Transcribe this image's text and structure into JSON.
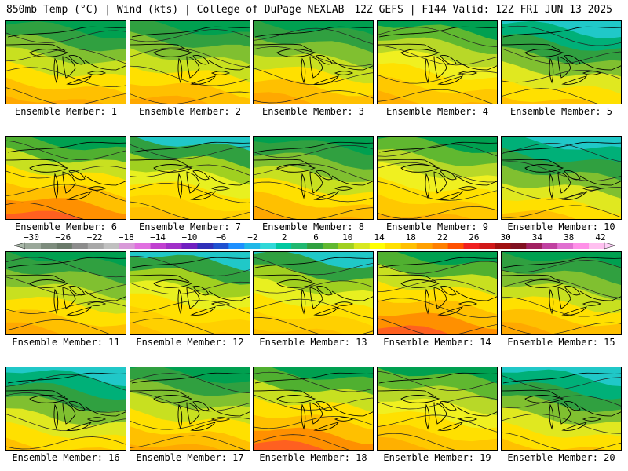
{
  "header": {
    "left": "850mb Temp (°C) | Wind (kts) | College of DuPage NEXLAB",
    "right": "12Z GEFS | F144 Valid: 12Z FRI JUN 13 2025"
  },
  "panels": [
    {
      "label": "Ensemble Member: 1",
      "scheme": "warm-north-green"
    },
    {
      "label": "Ensemble Member: 2",
      "scheme": "warm-north-green"
    },
    {
      "label": "Ensemble Member: 3",
      "scheme": "warm-north-green"
    },
    {
      "label": "Ensemble Member: 4",
      "scheme": "warm-yellow-low"
    },
    {
      "label": "Ensemble Member: 5",
      "scheme": "cool-north-teal"
    },
    {
      "label": "Ensemble Member: 6",
      "scheme": "hot-southwest"
    },
    {
      "label": "Ensemble Member: 7",
      "scheme": "yellow-northeast-teal"
    },
    {
      "label": "Ensemble Member: 8",
      "scheme": "warm-north-green"
    },
    {
      "label": "Ensemble Member: 9",
      "scheme": "warm-yellow-low"
    },
    {
      "label": "Ensemble Member: 10",
      "scheme": "cool-north-teal"
    },
    {
      "label": "Ensemble Member: 11",
      "scheme": "warm-north-green"
    },
    {
      "label": "Ensemble Member: 12",
      "scheme": "yellow-northeast-teal"
    },
    {
      "label": "Ensemble Member: 13",
      "scheme": "yellow-northeast-teal"
    },
    {
      "label": "Ensemble Member: 14",
      "scheme": "hot-southwest"
    },
    {
      "label": "Ensemble Member: 15",
      "scheme": "warm-north-green"
    },
    {
      "label": "Ensemble Member: 16",
      "scheme": "cool-north-teal"
    },
    {
      "label": "Ensemble Member: 17",
      "scheme": "warm-north-green"
    },
    {
      "label": "Ensemble Member: 18",
      "scheme": "hot-southwest"
    },
    {
      "label": "Ensemble Member: 19",
      "scheme": "warm-yellow-low"
    },
    {
      "label": "Ensemble Member: 20",
      "scheme": "cool-north-teal"
    }
  ],
  "colorbar": {
    "ticks": [
      "−30",
      "−26",
      "−22",
      "−18",
      "−14",
      "−10",
      "−6",
      "−2",
      "2",
      "6",
      "10",
      "14",
      "18",
      "22",
      "26",
      "30",
      "34",
      "38",
      "42"
    ],
    "colors": [
      "#9aa89a",
      "#7d8c7d",
      "#6a7a6a",
      "#8c8c8c",
      "#a8a8a8",
      "#c0c0c0",
      "#d89ad8",
      "#e070e0",
      "#c040d0",
      "#a030c8",
      "#7020c0",
      "#3030b8",
      "#2050d0",
      "#1e90ff",
      "#20b8e8",
      "#30d8d8",
      "#00c8a0",
      "#20b870",
      "#30a040",
      "#60b830",
      "#a0d020",
      "#d8e820",
      "#ffff00",
      "#ffe000",
      "#ffc000",
      "#ffa000",
      "#ff8000",
      "#ff5000",
      "#f02020",
      "#d01818",
      "#a01010",
      "#801020",
      "#a02060",
      "#c040a0",
      "#e070d0",
      "#ff90e8",
      "#ffc0f0"
    ],
    "end_colors": [
      "#a8b8a8",
      "#ffd0f8"
    ]
  },
  "schemes": {
    "warm-north-green": {
      "bands": [
        "#00a050",
        "#30a040",
        "#80c030",
        "#c8e020",
        "#ffe000",
        "#ffc000",
        "#ffa800"
      ]
    },
    "warm-yellow-low": {
      "bands": [
        "#00a050",
        "#60b830",
        "#b8d828",
        "#f0f020",
        "#ffe000",
        "#ffc800",
        "#ffb000"
      ]
    },
    "cool-north-teal": {
      "bands": [
        "#20c8c8",
        "#00b078",
        "#30a040",
        "#80c030",
        "#e0e820",
        "#ffe000",
        "#ffc000"
      ]
    },
    "hot-southwest": {
      "bands": [
        "#00a050",
        "#50b030",
        "#c8e020",
        "#ffe000",
        "#ffc000",
        "#ff9000",
        "#ff6020"
      ]
    },
    "yellow-northeast-teal": {
      "bands": [
        "#20c8c8",
        "#30a040",
        "#a0d020",
        "#e8f020",
        "#ffe000",
        "#ffd000",
        "#ffc000"
      ]
    }
  }
}
